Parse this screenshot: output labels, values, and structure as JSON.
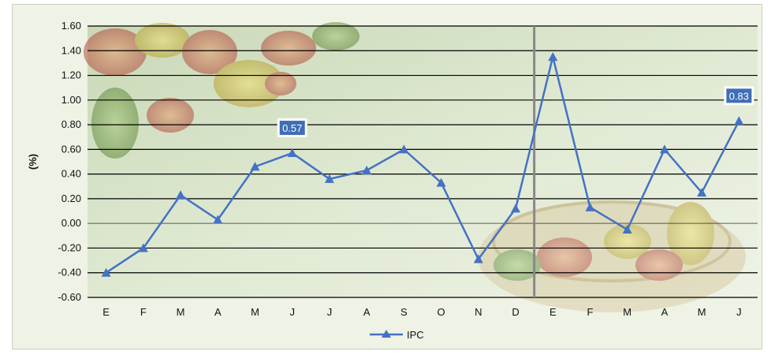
{
  "chart_data": {
    "type": "line",
    "ylabel": "(%)",
    "ylim": [
      -0.6,
      1.6
    ],
    "yticks": [
      "1.60",
      "1.40",
      "1.20",
      "1.00",
      "0.80",
      "0.60",
      "0.40",
      "0.20",
      "0.00",
      "-0.20",
      "-0.40",
      "-0.60"
    ],
    "categories": [
      "E",
      "F",
      "M",
      "A",
      "M",
      "J",
      "J",
      "A",
      "S",
      "O",
      "N",
      "D",
      "E",
      "F",
      "M",
      "A",
      "M",
      "J"
    ],
    "series": [
      {
        "name": "IPC",
        "color": "#4472c4",
        "values": [
          -0.4,
          -0.2,
          0.23,
          0.03,
          0.46,
          0.57,
          0.36,
          0.43,
          0.6,
          0.33,
          -0.29,
          0.12,
          1.35,
          0.13,
          -0.05,
          0.6,
          0.25,
          0.83
        ]
      }
    ],
    "callouts": [
      {
        "index": 5,
        "text": "0.57"
      },
      {
        "index": 17,
        "text": "0.83"
      }
    ],
    "year_separator_after_index": 11,
    "grid": true,
    "legend": "bottom-center",
    "background_image": "fruit-and-vegetable-basket"
  }
}
